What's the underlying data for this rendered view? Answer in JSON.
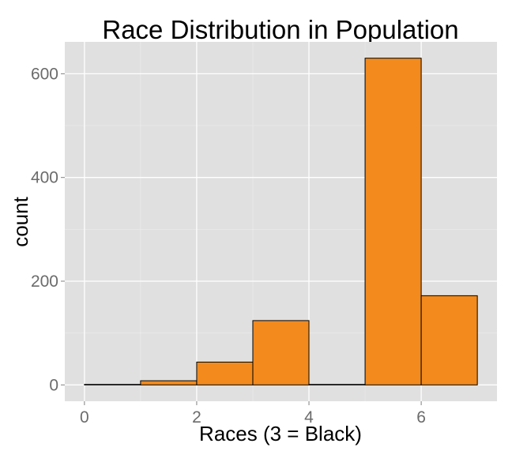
{
  "chart_data": {
    "type": "bar",
    "title": "Race Distribution in Population",
    "xlabel": "Races (3 = Black)",
    "ylabel": "count",
    "bin_width": 1,
    "bins": [
      {
        "x0": 0,
        "x1": 1,
        "count": 1
      },
      {
        "x0": 1,
        "x1": 2,
        "count": 8
      },
      {
        "x0": 2,
        "x1": 3,
        "count": 44
      },
      {
        "x0": 3,
        "x1": 4,
        "count": 124
      },
      {
        "x0": 4,
        "x1": 5,
        "count": 1
      },
      {
        "x0": 5,
        "x1": 6,
        "count": 630
      },
      {
        "x0": 6,
        "x1": 7,
        "count": 172
      }
    ],
    "xlim": [
      -0.35,
      7.35
    ],
    "ylim": [
      -31.5,
      661.5
    ],
    "x_ticks": [
      {
        "value": 0,
        "label": "0"
      },
      {
        "value": 2,
        "label": "2"
      },
      {
        "value": 4,
        "label": "4"
      },
      {
        "value": 6,
        "label": "6"
      }
    ],
    "y_ticks": [
      {
        "value": 0,
        "label": "0"
      },
      {
        "value": 200,
        "label": "200"
      },
      {
        "value": 400,
        "label": "400"
      },
      {
        "value": 600,
        "label": "600"
      }
    ],
    "grid": true,
    "colors": {
      "bar_fill": "#F28A1D",
      "bar_stroke": "#000000",
      "panel_background": "#E0E0E0",
      "grid_major": "#FFFFFF",
      "grid_minor": "#EBEBEB"
    }
  }
}
